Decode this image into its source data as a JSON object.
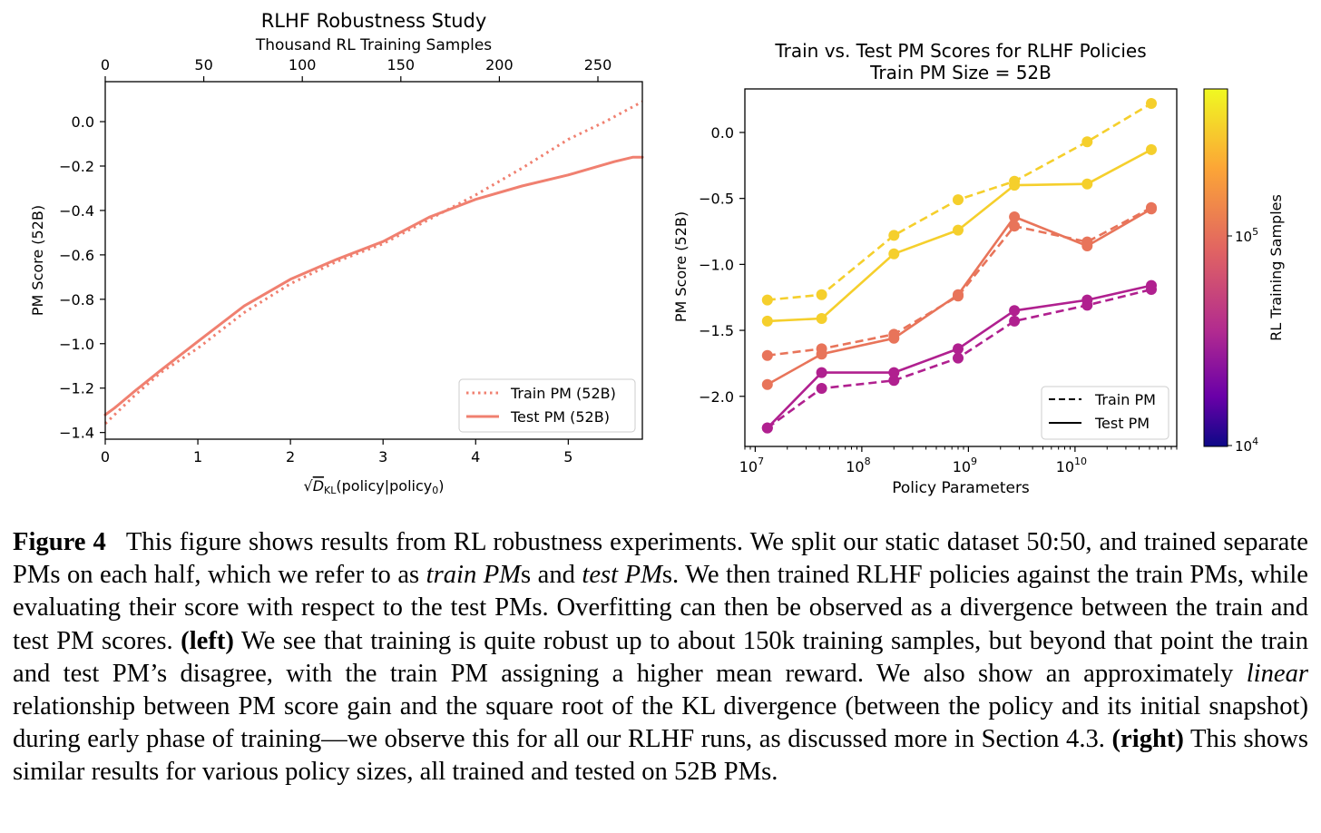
{
  "chart_data": [
    {
      "type": "line",
      "title": "RLHF Robustness Study",
      "top_axis_label": "Thousand RL Training Samples",
      "top_ticks": [
        0,
        50,
        100,
        150,
        200,
        250
      ],
      "xlabel_prefix": "√",
      "xlabel_main": "D",
      "xlabel_sub": "KL",
      "xlabel_rest": "(policy|policy",
      "xlabel_sub2": "0",
      "xlabel_end": ")",
      "ylabel": "PM Score (52B)",
      "xlim": [
        0,
        5.8
      ],
      "ylim": [
        -1.43,
        0.18
      ],
      "xticks": [
        0,
        1,
        2,
        3,
        4,
        5
      ],
      "yticks": [
        0.0,
        -0.2,
        -0.4,
        -0.6,
        -0.8,
        -1.0,
        -1.2,
        -1.4
      ],
      "ytick_labels": [
        "0.0",
        "−0.2",
        "−0.4",
        "−0.6",
        "−0.8",
        "−1.0",
        "−1.2",
        "−1.4"
      ],
      "legend_position": "lower-right",
      "series": [
        {
          "name": "Train PM (52B)",
          "style": "dotted",
          "color": "#f08070",
          "x": [
            0,
            0.3,
            0.6,
            1.0,
            1.5,
            2.0,
            2.5,
            3.0,
            3.5,
            4.0,
            4.5,
            5.0,
            5.4,
            5.8
          ],
          "y": [
            -1.36,
            -1.24,
            -1.13,
            -1.02,
            -0.86,
            -0.73,
            -0.63,
            -0.55,
            -0.44,
            -0.33,
            -0.21,
            -0.08,
            0.0,
            0.09
          ]
        },
        {
          "name": "Test PM (52B)",
          "style": "solid",
          "color": "#f08070",
          "x": [
            0,
            0.1,
            0.3,
            0.6,
            1.0,
            1.5,
            2.0,
            2.5,
            3.0,
            3.5,
            4.0,
            4.5,
            5.0,
            5.5,
            5.7,
            5.8
          ],
          "y": [
            -1.32,
            -1.29,
            -1.22,
            -1.12,
            -0.99,
            -0.83,
            -0.71,
            -0.62,
            -0.54,
            -0.43,
            -0.35,
            -0.29,
            -0.24,
            -0.18,
            -0.16,
            -0.16
          ]
        }
      ]
    },
    {
      "type": "line",
      "title": "Train vs. Test PM Scores for RLHF Policies",
      "subtitle": "Train PM Size = 52B",
      "xlabel": "Policy Parameters",
      "ylabel": "PM Score (52B)",
      "xscale": "log",
      "xlim": [
        8000000,
        90000000000
      ],
      "ylim": [
        -2.38,
        0.33
      ],
      "xtick_values": [
        10000000,
        100000000,
        1000000000,
        10000000000
      ],
      "xtick_bases": [
        "10",
        "10",
        "10",
        "10"
      ],
      "xtick_exps": [
        "7",
        "8",
        "9",
        "10"
      ],
      "yticks": [
        0.0,
        -0.5,
        -1.0,
        -1.5,
        -2.0
      ],
      "ytick_labels": [
        "0.0",
        "−0.5",
        "−1.0",
        "−1.5",
        "−2.0"
      ],
      "x": [
        13000000,
        42000000,
        200000000,
        800000000,
        2700000000,
        13000000000,
        52000000000
      ],
      "legend_position": "lower-right",
      "legend": [
        {
          "name": "Train PM",
          "style": "dashed"
        },
        {
          "name": "Test PM",
          "style": "solid"
        }
      ],
      "colorbar": {
        "label": "RL Training Samples",
        "scale": "log",
        "tick_bases": [
          "10",
          "10"
        ],
        "tick_exps": [
          "5",
          "4"
        ],
        "colors": [
          "#f0f921",
          "#fca636",
          "#e16462",
          "#b12a90",
          "#6a00a8",
          "#0d0887"
        ]
      },
      "series": [
        {
          "group": "yellow",
          "kind": "Train PM",
          "style": "dashed",
          "color": "#f5cf2c",
          "values": [
            -1.27,
            -1.23,
            -0.78,
            -0.51,
            -0.37,
            -0.07,
            0.22
          ]
        },
        {
          "group": "yellow",
          "kind": "Test PM",
          "style": "solid",
          "color": "#f5cf2c",
          "values": [
            -1.43,
            -1.41,
            -0.92,
            -0.74,
            -0.4,
            -0.39,
            -0.13
          ]
        },
        {
          "group": "orange",
          "kind": "Train PM",
          "style": "dashed",
          "color": "#e8745a",
          "values": [
            -1.69,
            -1.64,
            -1.53,
            -1.24,
            -0.71,
            -0.83,
            -0.57
          ]
        },
        {
          "group": "orange",
          "kind": "Test PM",
          "style": "solid",
          "color": "#e8745a",
          "values": [
            -1.91,
            -1.68,
            -1.56,
            -1.23,
            -0.64,
            -0.86,
            -0.58
          ]
        },
        {
          "group": "magenta",
          "kind": "Train PM",
          "style": "dashed",
          "color": "#b0208f",
          "values": [
            -2.24,
            -1.94,
            -1.88,
            -1.71,
            -1.43,
            -1.31,
            -1.19
          ]
        },
        {
          "group": "magenta",
          "kind": "Test PM",
          "style": "solid",
          "color": "#b0208f",
          "values": [
            -2.24,
            -1.82,
            -1.82,
            -1.64,
            -1.35,
            -1.27,
            -1.16
          ]
        }
      ]
    }
  ],
  "caption": {
    "label": "Figure 4",
    "t1": "This figure shows results from RL robustness experiments. We split our static dataset 50:50, and trained separate PMs on each half, which we refer to as ",
    "em1": "train PM",
    "t2": "s and ",
    "em2": "test PM",
    "t3": "s.  We then trained RLHF policies against the train PMs, while evaluating their score with respect to the test PMs. Overfitting can then be observed as a divergence between the train and test PM scores. ",
    "b1": "(left)",
    "t4": " We see that training is quite robust up to about 150k training samples, but beyond that point the train and test PM’s disagree, with the train PM assigning a higher mean reward. We also show an approximately ",
    "em3": "linear",
    "t5": " relationship between PM score gain and the  square root of the KL divergence (between the policy and its initial snapshot) during early phase of training—we observe this for all our RLHF runs, as discussed more in Section 4.3. ",
    "b2": "(right)",
    "t6": " This shows similar results for various policy sizes, all trained and tested on 52B PMs."
  }
}
